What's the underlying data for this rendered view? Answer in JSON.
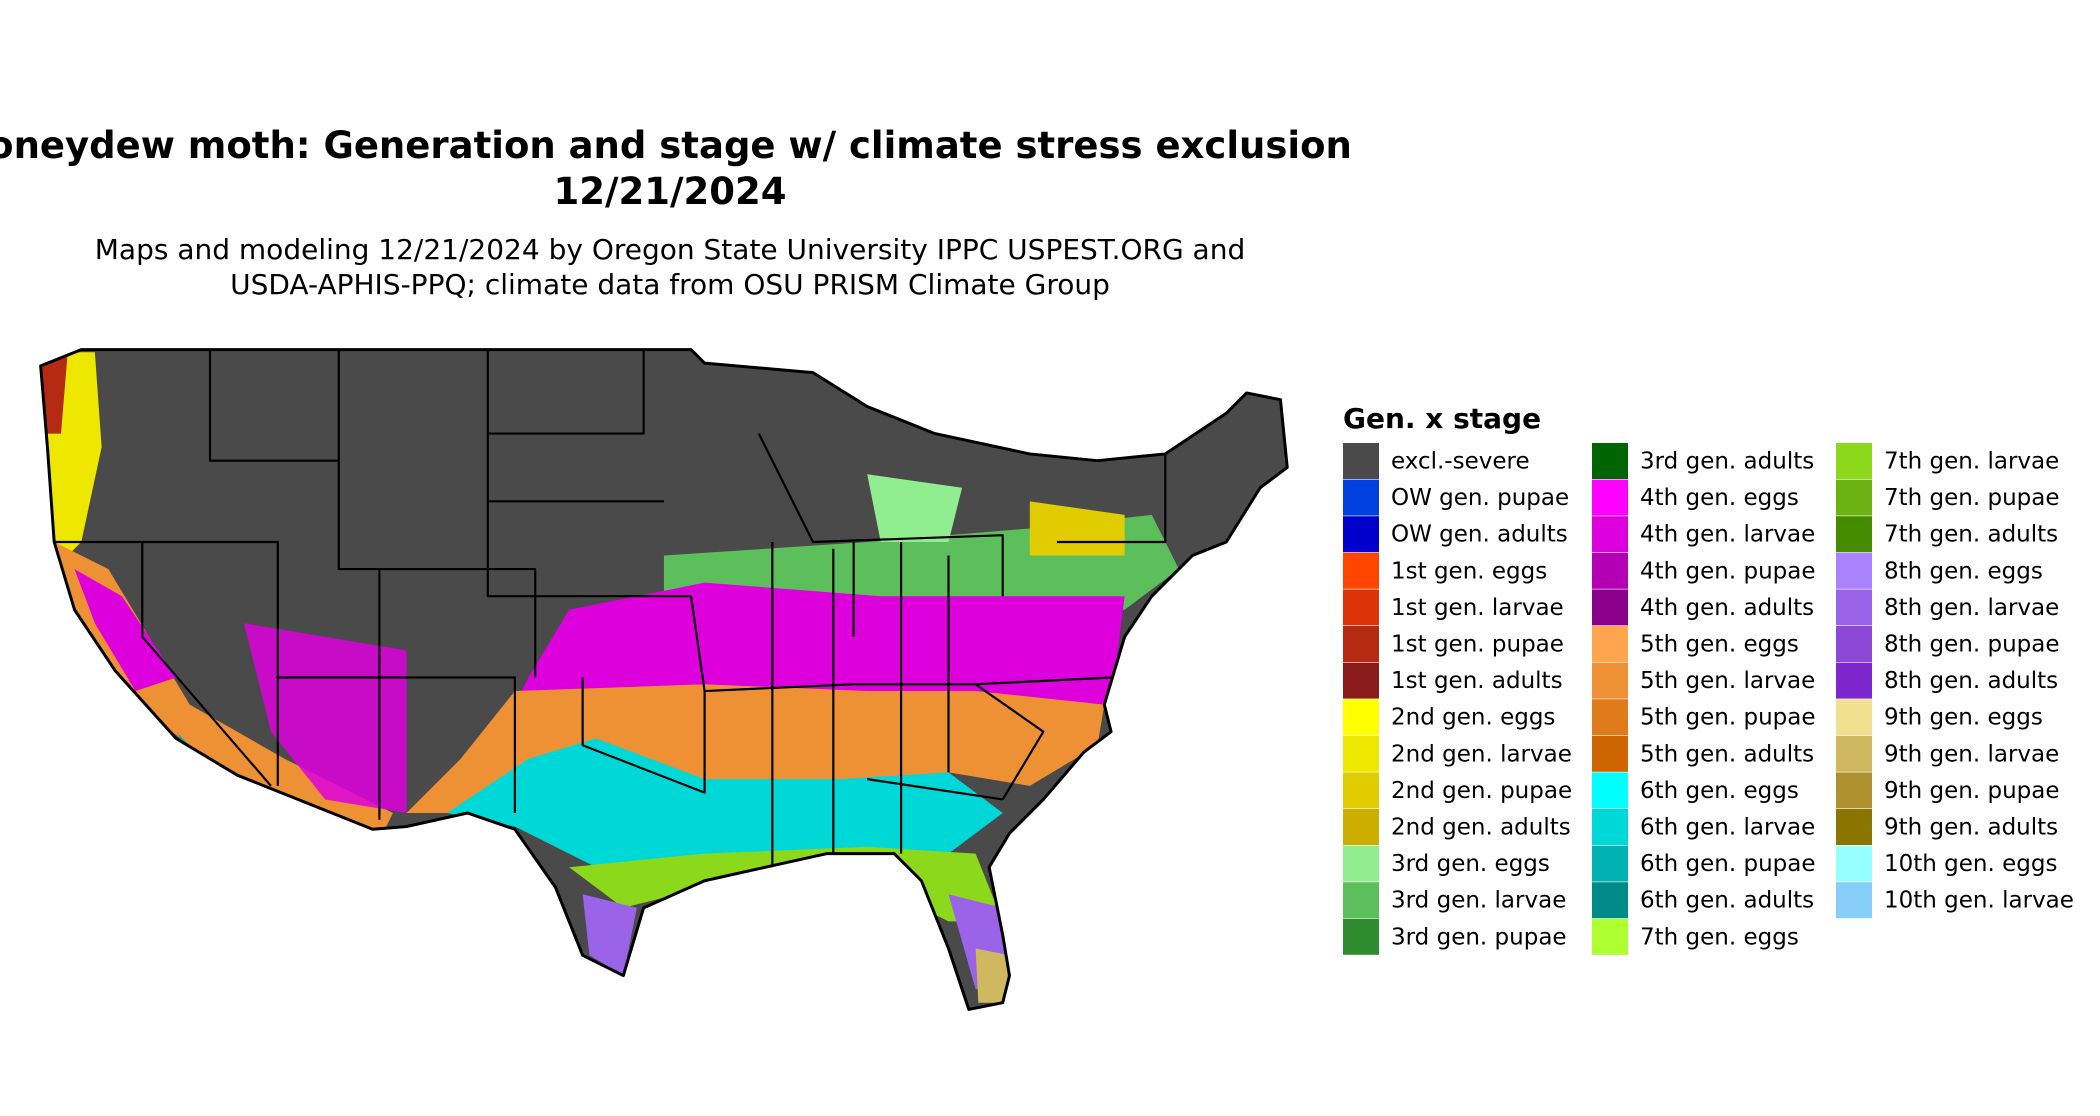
{
  "header": {
    "title_line1": "oneydew moth: Generation and stage w/ climate stress exclusion",
    "title_line2": "12/21/2024",
    "subtitle_line1": "Maps and modeling 12/21/2024 by Oregon State University IPPC USPEST.ORG and",
    "subtitle_line2": "USDA-APHIS-PPQ; climate data from OSU PRISM Climate Group"
  },
  "legend": {
    "title": "Gen. x stage",
    "items": [
      {
        "label": "excl.-severe",
        "color": "#4a4a4a"
      },
      {
        "label": "OW gen. pupae",
        "color": "#0040e0"
      },
      {
        "label": "OW gen. adults",
        "color": "#0000cd"
      },
      {
        "label": "1st gen. eggs",
        "color": "#ff4500"
      },
      {
        "label": "1st gen. larvae",
        "color": "#dd3308"
      },
      {
        "label": "1st gen. pupae",
        "color": "#b52a12"
      },
      {
        "label": "1st gen. adults",
        "color": "#8b1a1a"
      },
      {
        "label": "2nd gen. eggs",
        "color": "#ffff00"
      },
      {
        "label": "2nd gen. larvae",
        "color": "#eee800"
      },
      {
        "label": "2nd gen. pupae",
        "color": "#e0cc00"
      },
      {
        "label": "2nd gen. adults",
        "color": "#cdad00"
      },
      {
        "label": "3rd gen. eggs",
        "color": "#90ee90"
      },
      {
        "label": "3rd gen. larvae",
        "color": "#5cbf5c"
      },
      {
        "label": "3rd gen. pupae",
        "color": "#2e8b2e"
      },
      {
        "label": "3rd gen. adults",
        "color": "#006400"
      },
      {
        "label": "4th gen. eggs",
        "color": "#ff00ff"
      },
      {
        "label": "4th gen. larvae",
        "color": "#dd00dd"
      },
      {
        "label": "4th gen. pupae",
        "color": "#b400b4"
      },
      {
        "label": "4th gen. adults",
        "color": "#8b008b"
      },
      {
        "label": "5th gen. eggs",
        "color": "#ffa54f"
      },
      {
        "label": "5th gen. larvae",
        "color": "#ee9034"
      },
      {
        "label": "5th gen. pupae",
        "color": "#e07b1c"
      },
      {
        "label": "5th gen. adults",
        "color": "#cd6600"
      },
      {
        "label": "6th gen. eggs",
        "color": "#00ffff"
      },
      {
        "label": "6th gen. larvae",
        "color": "#00d8d8"
      },
      {
        "label": "6th gen. pupae",
        "color": "#00b2b2"
      },
      {
        "label": "6th gen. adults",
        "color": "#008b8b"
      },
      {
        "label": "7th gen. eggs",
        "color": "#adff2f"
      },
      {
        "label": "7th gen. larvae",
        "color": "#8cd91c"
      },
      {
        "label": "7th gen. pupae",
        "color": "#6cb312"
      },
      {
        "label": "7th gen. adults",
        "color": "#458b00"
      },
      {
        "label": "8th gen. eggs",
        "color": "#ab82ff"
      },
      {
        "label": "8th gen. larvae",
        "color": "#9b63e8"
      },
      {
        "label": "8th gen. pupae",
        "color": "#8c49d8"
      },
      {
        "label": "8th gen. adults",
        "color": "#7d26cd"
      },
      {
        "label": "9th gen. eggs",
        "color": "#f0e090"
      },
      {
        "label": "9th gen. larvae",
        "color": "#d0b860"
      },
      {
        "label": "9th gen. pupae",
        "color": "#ae9230"
      },
      {
        "label": "9th gen. adults",
        "color": "#8b7500"
      },
      {
        "label": "10th gen. eggs",
        "color": "#97ffff"
      },
      {
        "label": "10th gen. larvae",
        "color": "#87cefa"
      }
    ]
  }
}
